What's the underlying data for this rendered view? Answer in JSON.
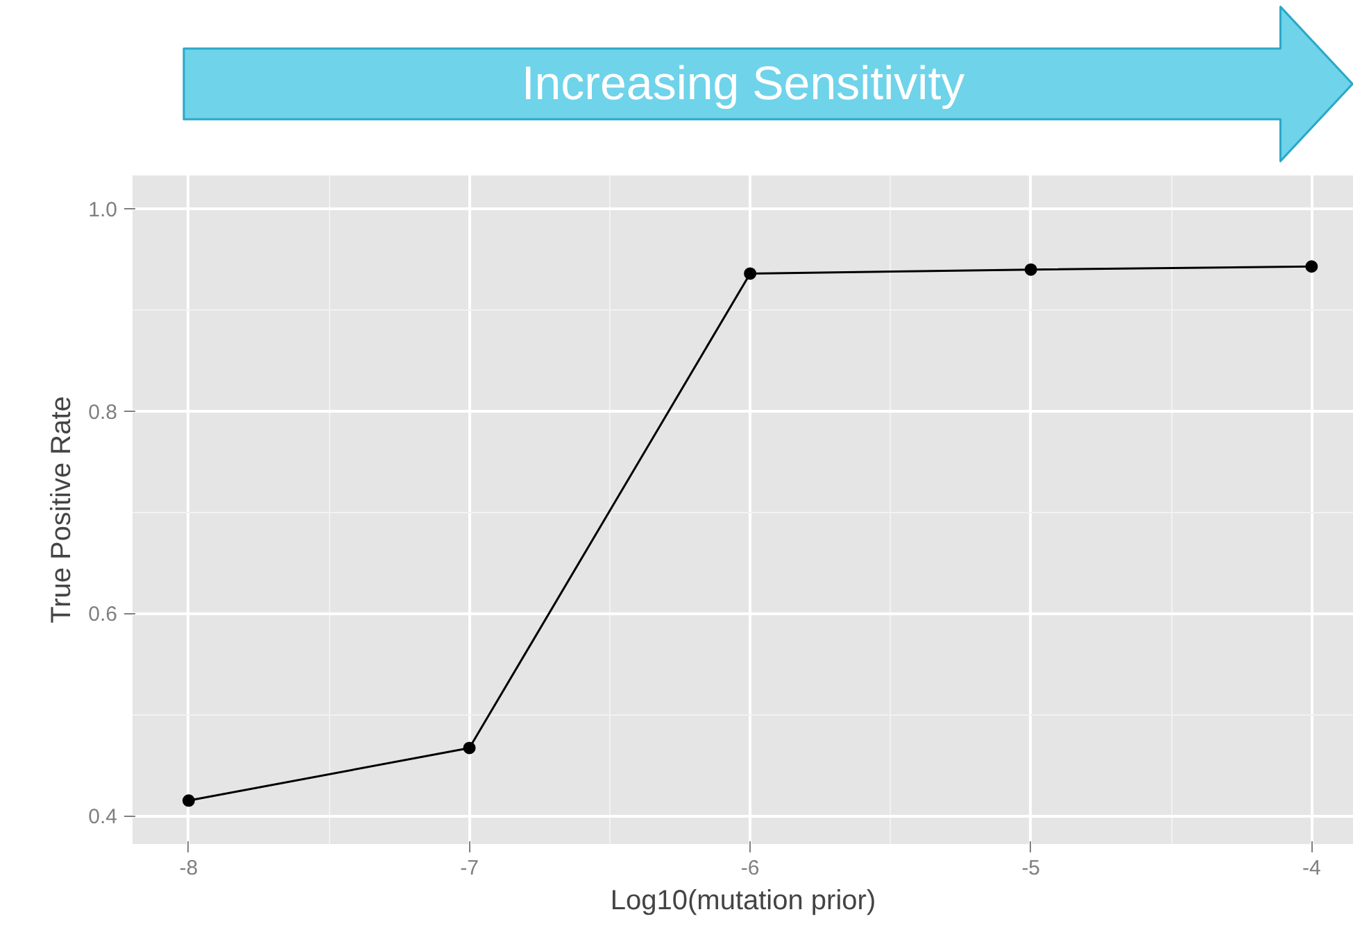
{
  "chart_data": {
    "type": "line",
    "xlabel": "Log10(mutation prior)",
    "ylabel": "True Positive Rate",
    "annotations": [
      "Increasing Sensitivity"
    ],
    "x": [
      -8,
      -7,
      -6,
      -5,
      -4
    ],
    "series": [
      {
        "color": "#000000",
        "values": [
          0.415,
          0.467,
          0.936,
          0.94,
          0.943
        ]
      }
    ],
    "marker": "circle",
    "line_style": "solid",
    "grid": true,
    "xlim": [
      -8.2,
      -3.85
    ],
    "ylim": [
      0.372,
      1.033
    ],
    "xticks": [
      -8,
      -7,
      -6,
      -5,
      -4
    ],
    "yticks": [
      0.4,
      0.6,
      0.8,
      {
        "value": 1,
        "label": "1.0"
      }
    ]
  }
}
